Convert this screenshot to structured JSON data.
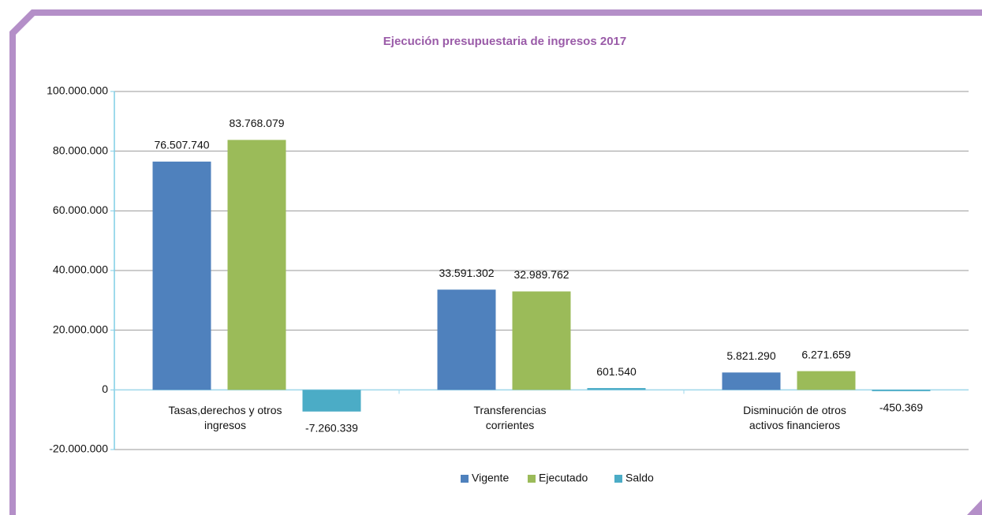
{
  "chart_data": {
    "type": "bar",
    "title": "Ejecución presupuestaria de ingresos 2017",
    "categories": [
      "Tasas,derechos y otros ingresos",
      "Transferencias corrientes",
      "Disminución de otros activos financieros"
    ],
    "series": [
      {
        "name": "Vigente",
        "color": "#4f81bd",
        "values": [
          76507740,
          33591302,
          5821290
        ],
        "value_labels": [
          "76.507.740",
          "33.591.302",
          "5.821.290"
        ]
      },
      {
        "name": "Ejecutado",
        "color": "#9bbb59",
        "values": [
          83768079,
          32989762,
          6271659
        ],
        "value_labels": [
          "83.768.079",
          "32.989.762",
          "6.271.659"
        ]
      },
      {
        "name": "Saldo",
        "color": "#4bacc6",
        "values": [
          -7260339,
          601540,
          -450369
        ],
        "value_labels": [
          "-7.260.339",
          "601.540",
          "-450.369"
        ]
      }
    ],
    "ylim": [
      -20000000,
      100000000
    ],
    "yticks": [
      {
        "value": -20000000,
        "label": "-20.000.000"
      },
      0,
      {
        "value": 20000000,
        "label": "20.000.000"
      },
      {
        "value": 40000000,
        "label": "40.000.000"
      },
      {
        "value": 60000000,
        "label": "60.000.000"
      },
      {
        "value": 80000000,
        "label": "80.000.000"
      },
      {
        "value": 100000000,
        "label": "100.000.000"
      }
    ],
    "grid": true,
    "legend": "bottom"
  }
}
